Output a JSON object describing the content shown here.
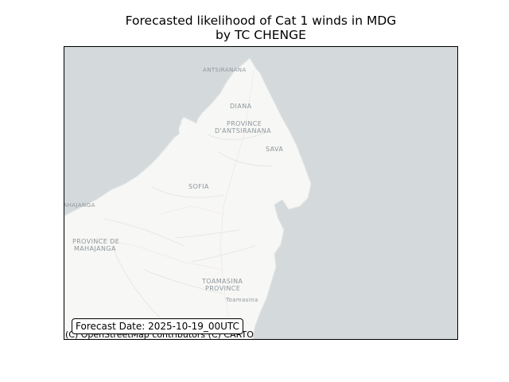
{
  "title": {
    "line1": "Forecasted likelihood of Cat 1 winds in MDG",
    "line2": "by TC CHENGE"
  },
  "map": {
    "ocean_color": "#d4dadc",
    "land_color": "#f7f7f5",
    "labels": {
      "antsiranana_city": "ANTSIRANANA",
      "diana": "DIANA",
      "province_antsiranana_1": "PROVINCE",
      "province_antsiranana_2": "D'ANTSIRANANA",
      "sava": "SAVA",
      "sofia": "SOFIA",
      "mahajanga_city": "MAHAJANGA",
      "province_mahajanga_1": "PROVINCE DE",
      "province_mahajanga_2": "MAHAJANGA",
      "toamasina_province_1": "TOAMASINA",
      "toamasina_province_2": "PROVINCE",
      "toamasina_city": "Toamasina"
    }
  },
  "forecast_date": "Forecast Date: 2025-10-19_00UTC",
  "attribution": "(C) OpenStreetMap contributors (C) CARTO"
}
